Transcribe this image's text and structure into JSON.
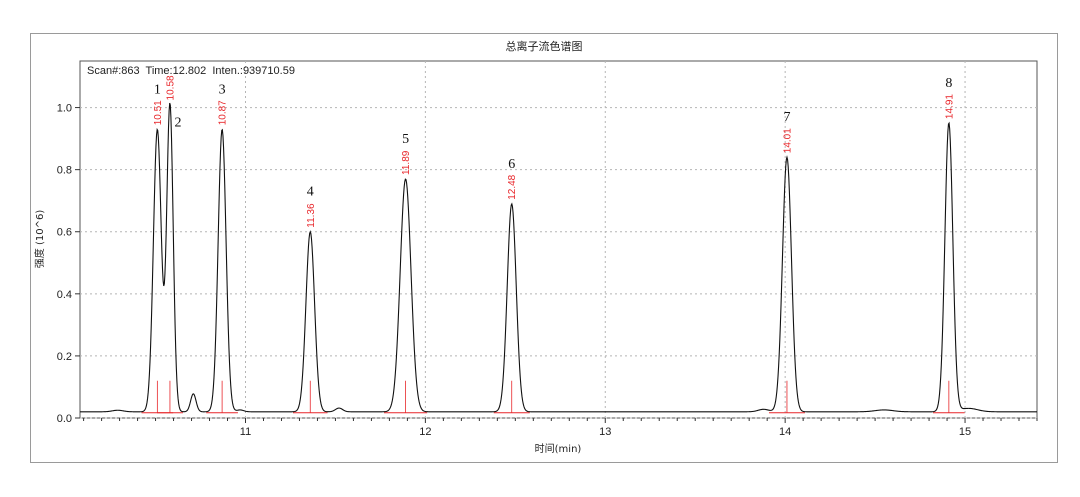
{
  "chart_data": {
    "type": "line",
    "title": "总离子流色谱图",
    "info_text": "Scan#:863  Time:12.802  Inten.:939710.59",
    "xlabel": "时间(min)",
    "ylabel": "强度 (10^6)",
    "xlim": [
      10.08,
      15.4
    ],
    "ylim": [
      0.0,
      1.15
    ],
    "xticks": [
      11,
      12,
      13,
      14,
      15
    ],
    "yticks": [
      0.0,
      0.2,
      0.4,
      0.6,
      0.8,
      1.0
    ],
    "grid": true,
    "baseline": 0.02,
    "peaks": [
      {
        "label": "1",
        "rt": 10.51,
        "rt_label": "10.51",
        "height": 0.93,
        "width": 0.022
      },
      {
        "label": "2",
        "rt": 10.58,
        "rt_label": "10.58",
        "height": 1.01,
        "width": 0.018
      },
      {
        "label": "3",
        "rt": 10.87,
        "rt_label": "10.87",
        "height": 0.93,
        "width": 0.022
      },
      {
        "label": "4",
        "rt": 11.36,
        "rt_label": "11.36",
        "height": 0.6,
        "width": 0.024
      },
      {
        "label": "5",
        "rt": 11.89,
        "rt_label": "11.89",
        "height": 0.77,
        "width": 0.03
      },
      {
        "label": "6",
        "rt": 12.48,
        "rt_label": "12.48",
        "height": 0.69,
        "width": 0.025
      },
      {
        "label": "7",
        "rt": 14.01,
        "rt_label": "14.01",
        "height": 0.84,
        "width": 0.025
      },
      {
        "label": "8",
        "rt": 14.91,
        "rt_label": "14.91",
        "height": 0.95,
        "width": 0.022
      }
    ],
    "minor_peaks": [
      {
        "rt": 10.71,
        "height": 0.078,
        "width": 0.015
      },
      {
        "rt": 10.97,
        "height": 0.026,
        "width": 0.02
      },
      {
        "rt": 11.52,
        "height": 0.032,
        "width": 0.02
      },
      {
        "rt": 10.29,
        "height": 0.025,
        "width": 0.03
      },
      {
        "rt": 13.88,
        "height": 0.028,
        "width": 0.03
      },
      {
        "rt": 14.55,
        "height": 0.026,
        "width": 0.05
      },
      {
        "rt": 15.02,
        "height": 0.031,
        "width": 0.05
      }
    ],
    "colors": {
      "trace": "#111111",
      "annotation": "#e8262a",
      "grid": "#b5b5b5"
    }
  }
}
